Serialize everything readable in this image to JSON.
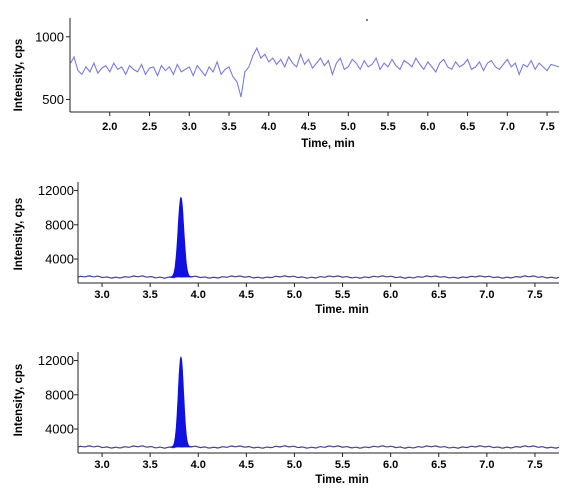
{
  "chart_data": [
    {
      "type": "line",
      "xlabel": "Time, min",
      "ylabel": "Intensity, cps",
      "xlim": [
        1.5,
        7.65
      ],
      "ylim": [
        400,
        1150
      ],
      "x_ticks": [
        "2.0",
        "2.5",
        "3.0",
        "3.5",
        "4.0",
        "4.5",
        "5.0",
        "5.5",
        "6.0",
        "6.5",
        "7.0",
        "7.5"
      ],
      "y_ticks": [
        "500",
        "1000"
      ],
      "grid": false,
      "series": [
        {
          "color": "#7c7cd8",
          "x": [
            1.5,
            1.55,
            1.6,
            1.65,
            1.7,
            1.75,
            1.8,
            1.85,
            1.9,
            1.95,
            2.0,
            2.05,
            2.1,
            2.15,
            2.2,
            2.25,
            2.3,
            2.35,
            2.4,
            2.45,
            2.5,
            2.55,
            2.6,
            2.65,
            2.7,
            2.75,
            2.8,
            2.85,
            2.9,
            2.95,
            3.0,
            3.05,
            3.1,
            3.15,
            3.2,
            3.25,
            3.3,
            3.35,
            3.4,
            3.45,
            3.5,
            3.55,
            3.6,
            3.65,
            3.7,
            3.75,
            3.8,
            3.85,
            3.9,
            3.95,
            4.0,
            4.05,
            4.1,
            4.15,
            4.2,
            4.25,
            4.3,
            4.35,
            4.4,
            4.45,
            4.5,
            4.55,
            4.6,
            4.65,
            4.7,
            4.75,
            4.8,
            4.85,
            4.9,
            4.95,
            5.0,
            5.05,
            5.1,
            5.15,
            5.2,
            5.25,
            5.3,
            5.35,
            5.4,
            5.45,
            5.5,
            5.55,
            5.6,
            5.65,
            5.7,
            5.75,
            5.8,
            5.85,
            5.9,
            5.95,
            6.0,
            6.05,
            6.1,
            6.15,
            6.2,
            6.25,
            6.3,
            6.35,
            6.4,
            6.45,
            6.5,
            6.55,
            6.6,
            6.65,
            6.7,
            6.75,
            6.8,
            6.85,
            6.9,
            6.95,
            7.0,
            7.05,
            7.1,
            7.15,
            7.2,
            7.25,
            7.3,
            7.35,
            7.4,
            7.45,
            7.5,
            7.55,
            7.6,
            7.65
          ],
          "y": [
            780,
            840,
            730,
            700,
            760,
            720,
            790,
            710,
            750,
            770,
            720,
            790,
            740,
            760,
            700,
            770,
            740,
            720,
            780,
            700,
            750,
            760,
            690,
            770,
            730,
            760,
            700,
            780,
            720,
            740,
            760,
            690,
            770,
            730,
            690,
            760,
            720,
            800,
            700,
            740,
            760,
            680,
            640,
            520,
            720,
            760,
            850,
            910,
            830,
            860,
            800,
            830,
            780,
            820,
            760,
            840,
            790,
            760,
            860,
            780,
            820,
            750,
            790,
            830,
            770,
            810,
            700,
            790,
            830,
            740,
            760,
            820,
            790,
            740,
            810,
            760,
            780,
            830,
            740,
            790,
            760,
            820,
            770,
            740,
            810,
            790,
            760,
            830,
            780,
            740,
            800,
            760,
            720,
            790,
            820,
            760,
            740,
            800,
            760,
            780,
            820,
            740,
            760,
            800,
            730,
            790,
            810,
            760,
            740,
            780,
            820,
            760,
            790,
            700,
            780,
            760,
            810,
            740,
            790,
            760,
            730,
            780,
            770,
            760
          ]
        }
      ]
    },
    {
      "type": "area",
      "xlabel": "Time. min",
      "ylabel": "Intensity, cps",
      "xlim": [
        2.75,
        7.75
      ],
      "ylim": [
        1200,
        13000
      ],
      "x_ticks": [
        "3.0",
        "3.5",
        "4.0",
        "4.5",
        "5.0",
        "5.5",
        "6.0",
        "6.5",
        "7.0",
        "7.5"
      ],
      "y_ticks": [
        "4000",
        "8000",
        "12000"
      ],
      "grid": false,
      "baseline": 1900,
      "peak": {
        "center": 3.82,
        "height": 11200,
        "width": 0.03,
        "fill": "#1010e0"
      },
      "line_color": "#44448a"
    },
    {
      "type": "area",
      "xlabel": "Time. min",
      "ylabel": "Intensity, cps",
      "xlim": [
        2.75,
        7.75
      ],
      "ylim": [
        1200,
        13000
      ],
      "x_ticks": [
        "3.0",
        "3.5",
        "4.0",
        "4.5",
        "5.0",
        "5.5",
        "6.0",
        "6.5",
        "7.0",
        "7.5"
      ],
      "y_ticks": [
        "4000",
        "8000",
        "12000"
      ],
      "grid": false,
      "baseline": 1900,
      "peak": {
        "center": 3.82,
        "height": 12400,
        "width": 0.028,
        "fill": "#1010e0"
      },
      "line_color": "#44448a"
    }
  ]
}
